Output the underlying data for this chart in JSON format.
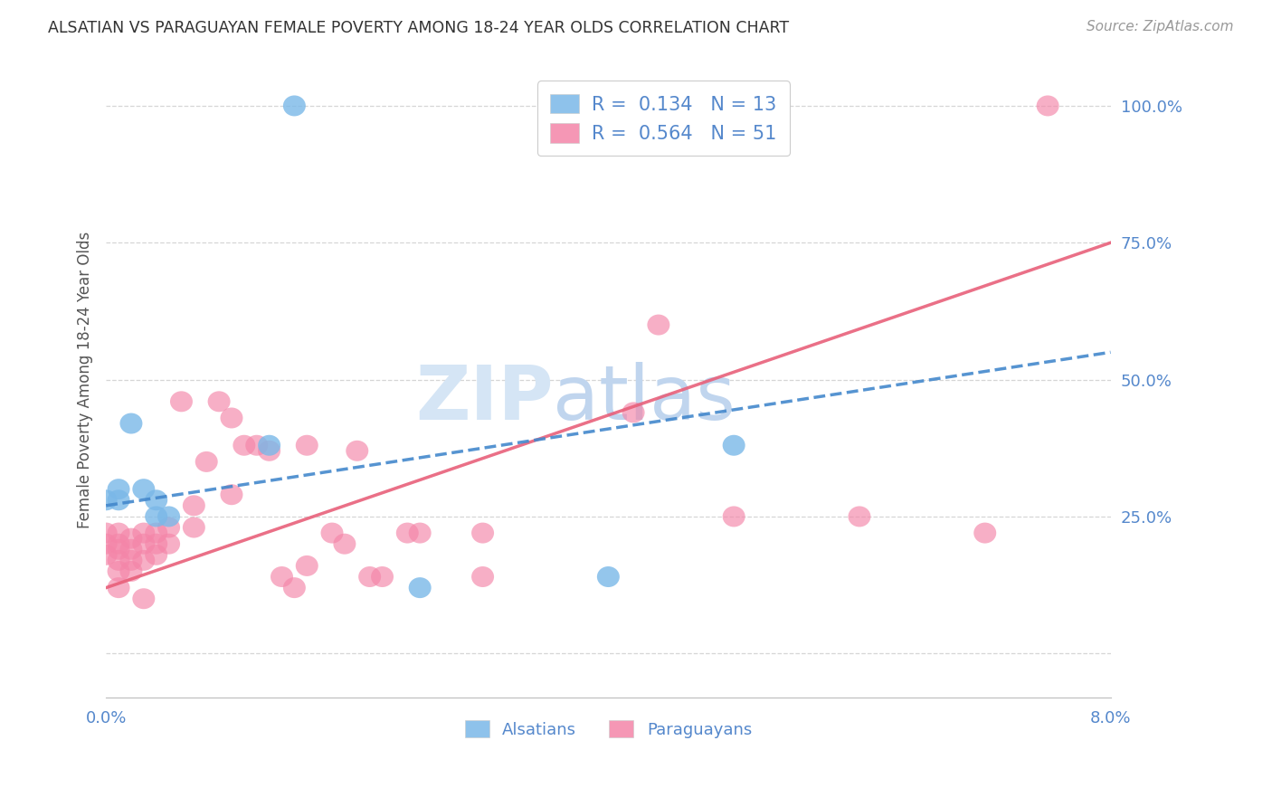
{
  "title": "ALSATIAN VS PARAGUAYAN FEMALE POVERTY AMONG 18-24 YEAR OLDS CORRELATION CHART",
  "source": "Source: ZipAtlas.com",
  "ylabel": "Female Poverty Among 18-24 Year Olds",
  "xlim": [
    0.0,
    0.08
  ],
  "ylim": [
    -0.08,
    1.08
  ],
  "yticks": [
    0.0,
    0.25,
    0.5,
    0.75,
    1.0
  ],
  "ytick_labels": [
    "",
    "25.0%",
    "50.0%",
    "75.0%",
    "100.0%"
  ],
  "xtick_labels": [
    "0.0%",
    "",
    "",
    "",
    "8.0%"
  ],
  "alsatian_color": "#7ab8e8",
  "paraguayan_color": "#f485a8",
  "alsatian_line_color": "#4488cc",
  "paraguayan_line_color": "#e8607a",
  "axis_tick_color": "#5588cc",
  "grid_color": "#cccccc",
  "watermark_zip_color": "#d5e5f5",
  "watermark_atlas_color": "#c0d5ee",
  "legend1_label": "R =  0.134   N = 13",
  "legend2_label": "R =  0.564   N = 51",
  "als_x": [
    0.0,
    0.001,
    0.001,
    0.002,
    0.003,
    0.004,
    0.004,
    0.005,
    0.013,
    0.015,
    0.025,
    0.04,
    0.05
  ],
  "als_y": [
    0.28,
    0.3,
    0.28,
    0.42,
    0.3,
    0.28,
    0.25,
    0.25,
    0.38,
    1.0,
    0.12,
    0.14,
    0.38
  ],
  "par_x": [
    0.0,
    0.0,
    0.0,
    0.001,
    0.001,
    0.001,
    0.001,
    0.001,
    0.001,
    0.002,
    0.002,
    0.002,
    0.002,
    0.003,
    0.003,
    0.003,
    0.003,
    0.004,
    0.004,
    0.004,
    0.005,
    0.005,
    0.006,
    0.007,
    0.007,
    0.008,
    0.009,
    0.01,
    0.01,
    0.011,
    0.012,
    0.013,
    0.014,
    0.015,
    0.016,
    0.016,
    0.018,
    0.019,
    0.02,
    0.021,
    0.022,
    0.024,
    0.025,
    0.03,
    0.03,
    0.042,
    0.044,
    0.05,
    0.06,
    0.07,
    0.075
  ],
  "par_y": [
    0.22,
    0.2,
    0.18,
    0.22,
    0.2,
    0.19,
    0.17,
    0.15,
    0.12,
    0.21,
    0.19,
    0.17,
    0.15,
    0.22,
    0.2,
    0.17,
    0.1,
    0.22,
    0.2,
    0.18,
    0.23,
    0.2,
    0.46,
    0.27,
    0.23,
    0.35,
    0.46,
    0.43,
    0.29,
    0.38,
    0.38,
    0.37,
    0.14,
    0.12,
    0.38,
    0.16,
    0.22,
    0.2,
    0.37,
    0.14,
    0.14,
    0.22,
    0.22,
    0.22,
    0.14,
    0.44,
    0.6,
    0.25,
    0.25,
    0.22,
    1.0
  ],
  "alsatian_line": {
    "x0": 0.0,
    "y0": 0.27,
    "x1": 0.08,
    "y1": 0.55
  },
  "paraguayan_line": {
    "x0": 0.0,
    "y0": 0.12,
    "x1": 0.08,
    "y1": 0.75
  }
}
